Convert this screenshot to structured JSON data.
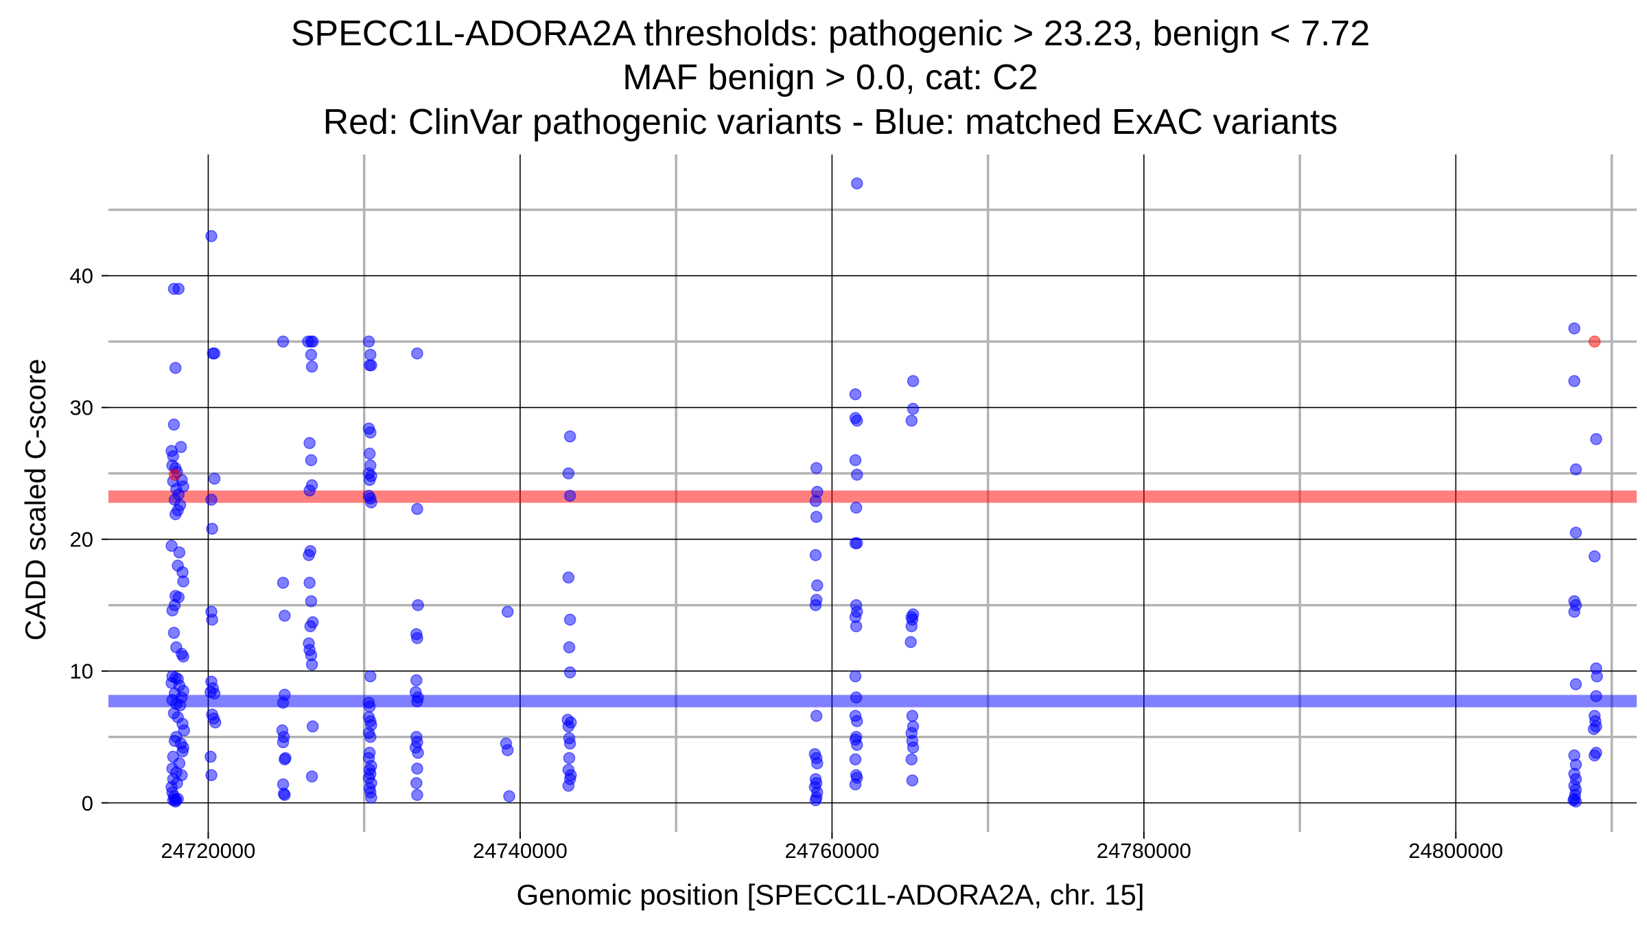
{
  "chart_data": {
    "type": "scatter",
    "title_lines": [
      "SPECC1L-ADORA2A thresholds: pathogenic > 23.23, benign < 7.72",
      "MAF benign > 0.0, cat: C2",
      "Red: ClinVar pathogenic variants - Blue: matched ExAC variants"
    ],
    "xlabel": "Genomic position [SPECC1L-ADORA2A, chr. 15]",
    "ylabel": "CADD scaled C-score",
    "x_ticks": [
      24720000,
      24740000,
      24760000,
      24780000,
      24800000
    ],
    "x_tick_labels": [
      "24720000",
      "24740000",
      "24760000",
      "24780000",
      "24800000"
    ],
    "y_ticks": [
      0,
      10,
      20,
      30,
      40
    ],
    "y_tick_labels": [
      "0",
      "10",
      "20",
      "30",
      "40"
    ],
    "xlim": [
      24713600,
      24811600
    ],
    "ylim": [
      -2.2,
      49.2
    ],
    "grid": true,
    "colors": {
      "pathogenic": "#ff0000",
      "benign": "#0000ff",
      "major_grid": "#000000",
      "minor_grid": "#b3b3b3"
    },
    "thresholds": [
      {
        "name": "pathogenic",
        "value": 23.23,
        "color": "#ff0000"
      },
      {
        "name": "benign",
        "value": 7.72,
        "color": "#0000ff"
      }
    ],
    "series": [
      {
        "role": "ClinVar pathogenic variants",
        "color": "#ff0000",
        "points": [
          [
            24717850,
            24.9
          ],
          [
            24808900,
            35.0
          ]
        ]
      },
      {
        "role": "matched ExAC variants",
        "color": "#0000ff",
        "points": [
          [
            24717800,
            39.0
          ],
          [
            24718100,
            39.0
          ],
          [
            24717900,
            33.0
          ],
          [
            24717800,
            28.7
          ],
          [
            24717650,
            26.7
          ],
          [
            24717750,
            26.3
          ],
          [
            24718250,
            27.0
          ],
          [
            24717700,
            25.6
          ],
          [
            24717900,
            25.4
          ],
          [
            24718000,
            25.1
          ],
          [
            24718300,
            24.5
          ],
          [
            24718400,
            24.0
          ],
          [
            24717750,
            24.4
          ],
          [
            24717950,
            23.8
          ],
          [
            24718100,
            23.4
          ],
          [
            24717850,
            23.0
          ],
          [
            24718200,
            22.6
          ],
          [
            24718050,
            22.2
          ],
          [
            24717900,
            21.9
          ],
          [
            24717650,
            19.5
          ],
          [
            24718150,
            19.0
          ],
          [
            24718050,
            18.0
          ],
          [
            24718350,
            17.5
          ],
          [
            24718400,
            16.8
          ],
          [
            24717900,
            15.7
          ],
          [
            24718100,
            15.6
          ],
          [
            24717850,
            15.0
          ],
          [
            24717700,
            14.6
          ],
          [
            24717800,
            12.9
          ],
          [
            24717950,
            11.8
          ],
          [
            24718300,
            11.3
          ],
          [
            24718400,
            11.1
          ],
          [
            24717700,
            9.6
          ],
          [
            24717900,
            9.5
          ],
          [
            24718050,
            9.4
          ],
          [
            24717650,
            9.1
          ],
          [
            24718150,
            8.9
          ],
          [
            24718400,
            8.5
          ],
          [
            24717850,
            8.3
          ],
          [
            24718300,
            8.0
          ],
          [
            24717700,
            7.8
          ],
          [
            24717950,
            7.5
          ],
          [
            24718200,
            7.4
          ],
          [
            24717800,
            6.8
          ],
          [
            24718050,
            6.5
          ],
          [
            24718350,
            6.0
          ],
          [
            24718450,
            5.5
          ],
          [
            24717950,
            5.0
          ],
          [
            24717850,
            4.7
          ],
          [
            24718250,
            4.5
          ],
          [
            24718400,
            4.2
          ],
          [
            24718350,
            3.9
          ],
          [
            24717750,
            3.5
          ],
          [
            24718150,
            3.0
          ],
          [
            24717700,
            2.6
          ],
          [
            24717950,
            2.3
          ],
          [
            24718300,
            2.1
          ],
          [
            24717750,
            1.8
          ],
          [
            24718000,
            1.5
          ],
          [
            24717650,
            1.2
          ],
          [
            24717700,
            0.8
          ],
          [
            24717800,
            0.5
          ],
          [
            24717850,
            0.3
          ],
          [
            24717950,
            0.2
          ],
          [
            24718050,
            0.3
          ],
          [
            24717900,
            0.1
          ],
          [
            24717750,
            0.2
          ],
          [
            24720200,
            43.0
          ],
          [
            24720300,
            34.1
          ],
          [
            24720400,
            34.1
          ],
          [
            24720400,
            24.6
          ],
          [
            24720200,
            23.0
          ],
          [
            24720250,
            20.8
          ],
          [
            24720200,
            14.5
          ],
          [
            24720250,
            13.9
          ],
          [
            24720200,
            9.2
          ],
          [
            24720300,
            8.7
          ],
          [
            24720150,
            8.4
          ],
          [
            24720400,
            8.3
          ],
          [
            24720250,
            6.7
          ],
          [
            24720350,
            6.4
          ],
          [
            24720450,
            6.1
          ],
          [
            24720150,
            3.5
          ],
          [
            24720200,
            2.1
          ],
          [
            24724800,
            35.0
          ],
          [
            24724800,
            16.7
          ],
          [
            24724900,
            14.2
          ],
          [
            24724900,
            8.2
          ],
          [
            24724800,
            7.6
          ],
          [
            24724750,
            5.5
          ],
          [
            24724850,
            5.0
          ],
          [
            24724800,
            4.6
          ],
          [
            24724950,
            3.4
          ],
          [
            24724900,
            3.3
          ],
          [
            24724800,
            1.4
          ],
          [
            24724850,
            0.7
          ],
          [
            24724900,
            0.6
          ],
          [
            24726400,
            35.0
          ],
          [
            24726600,
            35.0
          ],
          [
            24726700,
            35.0
          ],
          [
            24726600,
            34.0
          ],
          [
            24726650,
            33.1
          ],
          [
            24726500,
            27.3
          ],
          [
            24726600,
            26.0
          ],
          [
            24726650,
            24.1
          ],
          [
            24726500,
            23.7
          ],
          [
            24726550,
            19.1
          ],
          [
            24726450,
            18.8
          ],
          [
            24726500,
            16.7
          ],
          [
            24726600,
            15.3
          ],
          [
            24726700,
            13.7
          ],
          [
            24726550,
            13.4
          ],
          [
            24726450,
            12.1
          ],
          [
            24726500,
            11.6
          ],
          [
            24726600,
            11.2
          ],
          [
            24726650,
            10.5
          ],
          [
            24726700,
            5.8
          ],
          [
            24726650,
            2.0
          ],
          [
            24730300,
            35.0
          ],
          [
            24730400,
            34.0
          ],
          [
            24730350,
            33.2
          ],
          [
            24730450,
            33.2
          ],
          [
            24730300,
            28.4
          ],
          [
            24730400,
            28.1
          ],
          [
            24730350,
            26.5
          ],
          [
            24730400,
            25.6
          ],
          [
            24730300,
            25.0
          ],
          [
            24730450,
            24.8
          ],
          [
            24730350,
            24.5
          ],
          [
            24730300,
            23.3
          ],
          [
            24730400,
            23.1
          ],
          [
            24730450,
            22.8
          ],
          [
            24730400,
            9.6
          ],
          [
            24730300,
            7.6
          ],
          [
            24730350,
            7.3
          ],
          [
            24730300,
            6.5
          ],
          [
            24730400,
            6.2
          ],
          [
            24730450,
            5.9
          ],
          [
            24730300,
            5.3
          ],
          [
            24730400,
            5.0
          ],
          [
            24730350,
            3.8
          ],
          [
            24730300,
            3.4
          ],
          [
            24730450,
            2.8
          ],
          [
            24730350,
            2.5
          ],
          [
            24730400,
            2.2
          ],
          [
            24730300,
            1.9
          ],
          [
            24730450,
            1.5
          ],
          [
            24730350,
            1.1
          ],
          [
            24730400,
            0.8
          ],
          [
            24730450,
            0.4
          ],
          [
            24733400,
            34.1
          ],
          [
            24733400,
            22.3
          ],
          [
            24733450,
            15.0
          ],
          [
            24733350,
            12.8
          ],
          [
            24733400,
            12.5
          ],
          [
            24733350,
            9.3
          ],
          [
            24733300,
            8.4
          ],
          [
            24733450,
            8.0
          ],
          [
            24733400,
            7.7
          ],
          [
            24733350,
            5.0
          ],
          [
            24733400,
            4.6
          ],
          [
            24733300,
            4.2
          ],
          [
            24733450,
            3.8
          ],
          [
            24733400,
            2.6
          ],
          [
            24733350,
            1.5
          ],
          [
            24733400,
            0.6
          ],
          [
            24739200,
            14.5
          ],
          [
            24739100,
            4.5
          ],
          [
            24739200,
            4.0
          ],
          [
            24739300,
            0.5
          ],
          [
            24743200,
            27.8
          ],
          [
            24743100,
            25.0
          ],
          [
            24743200,
            23.3
          ],
          [
            24743100,
            17.1
          ],
          [
            24743200,
            13.9
          ],
          [
            24743150,
            11.8
          ],
          [
            24743200,
            9.9
          ],
          [
            24743050,
            6.3
          ],
          [
            24743250,
            6.1
          ],
          [
            24743100,
            5.8
          ],
          [
            24743150,
            4.9
          ],
          [
            24743200,
            4.5
          ],
          [
            24743150,
            3.4
          ],
          [
            24743100,
            2.5
          ],
          [
            24743250,
            2.1
          ],
          [
            24743200,
            1.8
          ],
          [
            24743100,
            1.3
          ],
          [
            24759000,
            25.4
          ],
          [
            24759050,
            23.6
          ],
          [
            24758950,
            22.9
          ],
          [
            24759000,
            21.7
          ],
          [
            24758950,
            18.8
          ],
          [
            24759050,
            16.5
          ],
          [
            24759000,
            15.4
          ],
          [
            24758950,
            15.0
          ],
          [
            24759000,
            6.6
          ],
          [
            24758900,
            3.7
          ],
          [
            24759000,
            3.4
          ],
          [
            24759050,
            3.0
          ],
          [
            24758950,
            1.8
          ],
          [
            24759000,
            1.5
          ],
          [
            24758900,
            1.2
          ],
          [
            24759050,
            0.8
          ],
          [
            24759000,
            0.4
          ],
          [
            24758950,
            0.2
          ],
          [
            24761600,
            47.0
          ],
          [
            24761500,
            31.0
          ],
          [
            24761500,
            29.2
          ],
          [
            24761600,
            29.0
          ],
          [
            24761500,
            26.0
          ],
          [
            24761600,
            24.9
          ],
          [
            24761550,
            22.4
          ],
          [
            24761500,
            19.7
          ],
          [
            24761600,
            19.7
          ],
          [
            24761550,
            15.0
          ],
          [
            24761600,
            14.5
          ],
          [
            24761500,
            14.1
          ],
          [
            24761550,
            13.4
          ],
          [
            24761500,
            9.6
          ],
          [
            24761550,
            8.0
          ],
          [
            24761500,
            6.6
          ],
          [
            24761600,
            6.2
          ],
          [
            24761550,
            5.0
          ],
          [
            24761500,
            4.8
          ],
          [
            24761600,
            4.4
          ],
          [
            24761500,
            3.3
          ],
          [
            24761550,
            2.1
          ],
          [
            24761600,
            1.9
          ],
          [
            24761500,
            1.4
          ],
          [
            24765200,
            32.0
          ],
          [
            24765200,
            29.9
          ],
          [
            24765100,
            29.0
          ],
          [
            24765200,
            14.3
          ],
          [
            24765100,
            14.1
          ],
          [
            24765150,
            13.9
          ],
          [
            24765100,
            13.4
          ],
          [
            24765050,
            12.2
          ],
          [
            24765150,
            6.6
          ],
          [
            24765200,
            5.8
          ],
          [
            24765100,
            5.3
          ],
          [
            24765150,
            4.7
          ],
          [
            24765200,
            4.2
          ],
          [
            24765100,
            3.3
          ],
          [
            24765150,
            1.7
          ],
          [
            24807600,
            36.0
          ],
          [
            24807600,
            32.0
          ],
          [
            24807700,
            25.3
          ],
          [
            24807700,
            20.5
          ],
          [
            24807600,
            15.3
          ],
          [
            24807700,
            15.0
          ],
          [
            24807600,
            14.5
          ],
          [
            24807700,
            9.0
          ],
          [
            24807600,
            3.6
          ],
          [
            24807700,
            2.9
          ],
          [
            24807600,
            2.2
          ],
          [
            24807700,
            1.8
          ],
          [
            24807600,
            1.3
          ],
          [
            24807700,
            1.0
          ],
          [
            24807650,
            0.6
          ],
          [
            24807600,
            0.3
          ],
          [
            24807700,
            0.1
          ],
          [
            24807550,
            0.2
          ],
          [
            24809000,
            27.6
          ],
          [
            24808900,
            18.7
          ],
          [
            24809000,
            10.2
          ],
          [
            24809050,
            9.6
          ],
          [
            24809000,
            8.1
          ],
          [
            24808900,
            6.6
          ],
          [
            24808950,
            6.2
          ],
          [
            24809000,
            5.8
          ],
          [
            24808850,
            5.6
          ],
          [
            24809000,
            3.8
          ],
          [
            24808900,
            3.6
          ]
        ]
      }
    ]
  }
}
